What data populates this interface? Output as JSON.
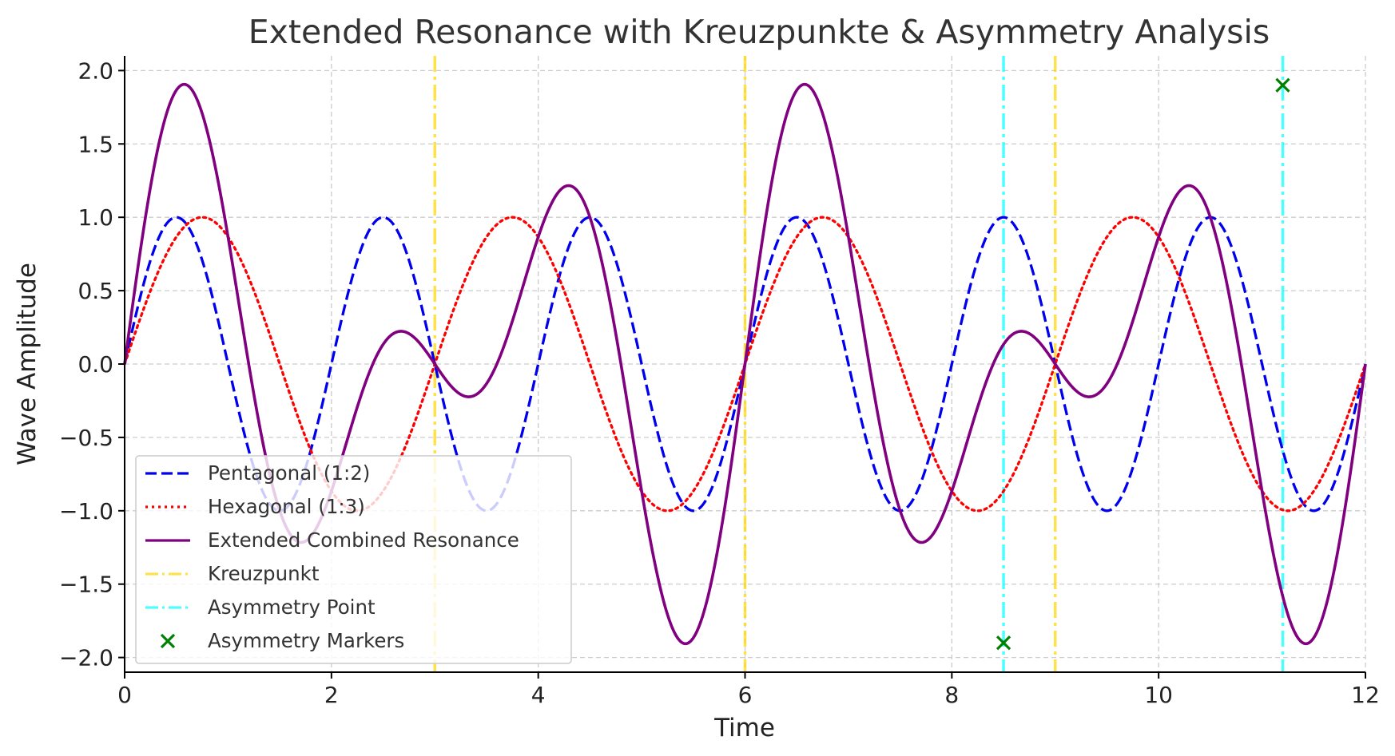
{
  "chart_data": {
    "type": "line",
    "title": "Extended Resonance with Kreuzpunkte & Asymmetry Analysis",
    "xlabel": "Time",
    "ylabel": "Wave Amplitude",
    "xlim": [
      0,
      12
    ],
    "ylim": [
      -2.1,
      2.1
    ],
    "xticks": [
      0,
      2,
      4,
      6,
      8,
      10,
      12
    ],
    "xtick_labels": [
      "0",
      "2",
      "4",
      "6",
      "8",
      "10",
      "12"
    ],
    "yticks": [
      2.0,
      1.5,
      1.0,
      0.5,
      0.0,
      -0.5,
      -1.0,
      -1.5,
      -2.0
    ],
    "ytick_labels": [
      "2.0",
      "1.5",
      "1.0",
      "0.5",
      "0.0",
      "−0.5",
      "−1.0",
      "−1.5",
      "−2.0"
    ],
    "grid": true,
    "legend_position": "lower-left",
    "series": [
      {
        "name": "Pentagonal (1:2)",
        "style": "dashed",
        "color": "#0000ee",
        "formula": "sin(pi*t)",
        "period": 2
      },
      {
        "name": "Hexagonal (1:3)",
        "style": "dotted",
        "color": "#ff0000",
        "formula": "sin(2*pi*t/3)",
        "period": 3
      },
      {
        "name": "Extended Combined Resonance",
        "style": "solid",
        "color": "#800080",
        "formula": "sin(pi*t) + sin(2*pi*t/3)",
        "period": 6
      }
    ],
    "vertical_lines": [
      {
        "name": "Kreuzpunkt",
        "color": "#ffd700",
        "style": "dashdot",
        "x": [
          3,
          6,
          9
        ]
      },
      {
        "name": "Asymmetry Point",
        "color": "#00ffff",
        "style": "dashdot",
        "x": [
          8.5,
          11.2
        ]
      }
    ],
    "markers": {
      "name": "Asymmetry Markers",
      "color": "#008000",
      "symbol": "x",
      "points": [
        {
          "x": 8.5,
          "y": -1.9
        },
        {
          "x": 11.2,
          "y": 1.9
        }
      ]
    }
  }
}
